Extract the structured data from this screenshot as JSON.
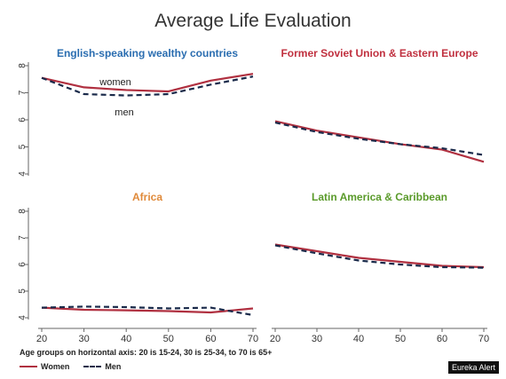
{
  "title": "Average Life Evaluation",
  "note": "Age groups on horizontal axis: 20 is 15-24, 30 is 25-34, to 70 is 65+",
  "legend": {
    "women": "Women",
    "men": "Men"
  },
  "credit": "Eureka Alert",
  "colors": {
    "women": "#b03040",
    "men": "#1a2a4a"
  },
  "chart_data": [
    {
      "type": "line",
      "title": "English-speaking wealthy countries",
      "title_color": "#2a6db0",
      "x": [
        20,
        30,
        40,
        50,
        60,
        70
      ],
      "x_ticks": [
        "20",
        "30",
        "40",
        "50",
        "60",
        "70"
      ],
      "y_ticks": [
        "4",
        "5",
        "6",
        "7",
        "8"
      ],
      "ylim": [
        4,
        8
      ],
      "series": [
        {
          "name": "Women",
          "values": [
            7.55,
            7.2,
            7.1,
            7.05,
            7.45,
            7.7
          ]
        },
        {
          "name": "Men",
          "values": [
            7.55,
            6.95,
            6.9,
            6.95,
            7.3,
            7.6
          ]
        }
      ],
      "annotations": [
        "women",
        "men"
      ]
    },
    {
      "type": "line",
      "title": "Former Soviet Union & Eastern Europe",
      "title_color": "#c0303f",
      "x": [
        20,
        30,
        40,
        50,
        60,
        70
      ],
      "x_ticks": [
        "20",
        "30",
        "40",
        "50",
        "60",
        "70"
      ],
      "y_ticks": [
        "4",
        "5",
        "6",
        "7",
        "8"
      ],
      "ylim": [
        4,
        8
      ],
      "series": [
        {
          "name": "Women",
          "values": [
            5.95,
            5.6,
            5.35,
            5.1,
            4.9,
            4.45
          ]
        },
        {
          "name": "Men",
          "values": [
            5.9,
            5.55,
            5.3,
            5.1,
            4.95,
            4.7
          ]
        }
      ]
    },
    {
      "type": "line",
      "title": "Africa",
      "title_color": "#e08a3a",
      "x": [
        20,
        30,
        40,
        50,
        60,
        70
      ],
      "x_ticks": [
        "20",
        "30",
        "40",
        "50",
        "60",
        "70"
      ],
      "y_ticks": [
        "4",
        "5",
        "6",
        "7",
        "8"
      ],
      "ylim": [
        4,
        8
      ],
      "series": [
        {
          "name": "Women",
          "values": [
            4.38,
            4.3,
            4.28,
            4.25,
            4.2,
            4.35
          ]
        },
        {
          "name": "Men",
          "values": [
            4.38,
            4.42,
            4.4,
            4.35,
            4.38,
            4.1
          ]
        }
      ]
    },
    {
      "type": "line",
      "title": "Latin America & Caribbean",
      "title_color": "#5a9a2a",
      "x": [
        20,
        30,
        40,
        50,
        60,
        70
      ],
      "x_ticks": [
        "20",
        "30",
        "40",
        "50",
        "60",
        "70"
      ],
      "y_ticks": [
        "4",
        "5",
        "6",
        "7",
        "8"
      ],
      "ylim": [
        4,
        8
      ],
      "series": [
        {
          "name": "Women",
          "values": [
            6.75,
            6.5,
            6.25,
            6.1,
            5.95,
            5.9
          ]
        },
        {
          "name": "Men",
          "values": [
            6.72,
            6.42,
            6.15,
            6.0,
            5.9,
            5.88
          ]
        }
      ]
    }
  ]
}
